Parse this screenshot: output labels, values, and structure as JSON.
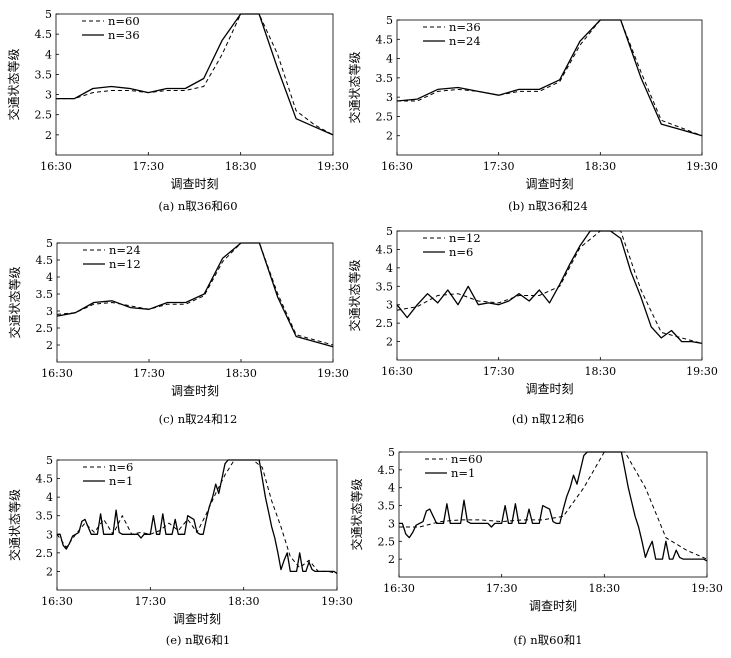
{
  "figure": {
    "panels": [
      {
        "caption": "(a) n取36和60",
        "xlabel": "调查时刻",
        "ylabel": "交通状态等级",
        "legend": [
          {
            "label": "n=60",
            "style": "dashed"
          },
          {
            "label": "n=36",
            "style": "solid"
          }
        ]
      },
      {
        "caption": "(b) n取36和24",
        "xlabel": "调查时刻",
        "ylabel": "交通状态等级",
        "legend": [
          {
            "label": "n=36",
            "style": "dashed"
          },
          {
            "label": "n=24",
            "style": "solid"
          }
        ]
      },
      {
        "caption": "(c) n取24和12",
        "xlabel": "调查时刻",
        "ylabel": "交通状态等级",
        "legend": [
          {
            "label": "n=24",
            "style": "dashed"
          },
          {
            "label": "n=12",
            "style": "solid"
          }
        ]
      },
      {
        "caption": "(d) n取12和6",
        "xlabel": "调查时刻",
        "ylabel": "交通状态等级",
        "legend": [
          {
            "label": "n=12",
            "style": "dashed"
          },
          {
            "label": "n=6",
            "style": "solid"
          }
        ]
      },
      {
        "caption": "(e) n取6和1",
        "xlabel": "调查时刻",
        "ylabel": "交通状态等级",
        "legend": [
          {
            "label": "n=6",
            "style": "dashed"
          },
          {
            "label": "n=1",
            "style": "solid"
          }
        ]
      },
      {
        "caption": "(f) n取60和1",
        "xlabel": "调查时刻",
        "ylabel": "交通状态等级",
        "legend": [
          {
            "label": "n=60",
            "style": "dashed"
          },
          {
            "label": "n=1",
            "style": "solid"
          }
        ]
      }
    ]
  },
  "chart_data": {
    "type": "line",
    "x_unit": "minutes after 16:30",
    "x_tick_labels": [
      "16:30",
      "17:30",
      "18:30",
      "19:30"
    ],
    "x_ticks": [
      0,
      60,
      120,
      180
    ],
    "xlim": [
      0,
      180
    ],
    "ylim": [
      1.5,
      5
    ],
    "y_ticks": [
      2,
      2.5,
      3,
      3.5,
      4,
      4.5,
      5
    ],
    "y_tick_labels": [
      "2",
      "2.5",
      "3",
      "3.5",
      "4",
      "4.5",
      "5"
    ],
    "series_by_n": {
      "1": {
        "x": [
          0,
          2,
          4,
          6,
          8,
          10,
          12,
          14,
          16,
          18,
          20,
          22,
          24,
          26,
          28,
          30,
          32,
          34,
          36,
          38,
          40,
          42,
          44,
          46,
          48,
          50,
          52,
          54,
          56,
          58,
          60,
          62,
          64,
          66,
          68,
          70,
          72,
          74,
          76,
          78,
          80,
          82,
          84,
          86,
          88,
          90,
          92,
          94,
          96,
          98,
          100,
          102,
          104,
          106,
          108,
          110,
          112,
          114,
          116,
          118,
          120,
          122,
          124,
          126,
          128,
          130,
          132,
          134,
          136,
          138,
          140,
          142,
          144,
          146,
          148,
          150,
          152,
          154,
          156,
          158,
          160,
          162,
          164,
          166,
          168,
          170,
          172,
          174,
          176,
          178,
          180
        ],
        "y": [
          3.0,
          3.0,
          2.7,
          2.6,
          2.75,
          2.95,
          3.0,
          3.05,
          3.35,
          3.4,
          3.2,
          3.0,
          3.0,
          3.0,
          3.55,
          3.0,
          3.0,
          3.0,
          3.0,
          3.65,
          3.05,
          3.0,
          3.0,
          3.0,
          3.0,
          3.0,
          3.0,
          2.9,
          3.0,
          3.0,
          3.0,
          3.5,
          3.0,
          3.0,
          3.55,
          3.0,
          3.0,
          3.0,
          3.4,
          3.0,
          3.0,
          3.0,
          3.5,
          3.45,
          3.4,
          3.05,
          3.0,
          3.0,
          3.4,
          3.75,
          4.0,
          4.35,
          4.1,
          4.5,
          4.9,
          5.0,
          5.0,
          5.0,
          5.0,
          5.0,
          5.0,
          5.0,
          5.0,
          5.0,
          5.0,
          5.0,
          4.5,
          4.0,
          3.6,
          3.2,
          2.9,
          2.5,
          2.05,
          2.3,
          2.5,
          2.0,
          2.0,
          2.0,
          2.5,
          2.0,
          2.0,
          2.25,
          2.05,
          2.0,
          2.0,
          2.0,
          2.0,
          2.0,
          2.0,
          2.0,
          1.95
        ]
      },
      "6": {
        "x": [
          0,
          6,
          12,
          18,
          24,
          30,
          36,
          42,
          48,
          54,
          60,
          66,
          72,
          78,
          84,
          90,
          96,
          102,
          108,
          114,
          120,
          126,
          132,
          138,
          144,
          150,
          156,
          162,
          168,
          174,
          180
        ],
        "y": [
          3.0,
          2.65,
          3.0,
          3.3,
          3.05,
          3.4,
          3.0,
          3.5,
          3.0,
          3.05,
          3.0,
          3.1,
          3.3,
          3.1,
          3.4,
          3.05,
          3.55,
          4.1,
          4.6,
          5.0,
          5.0,
          5.0,
          4.8,
          3.9,
          3.2,
          2.4,
          2.1,
          2.3,
          2.0,
          2.0,
          1.95
        ]
      },
      "12": {
        "x": [
          0,
          12,
          24,
          36,
          48,
          60,
          72,
          84,
          96,
          108,
          120,
          132,
          144,
          156,
          168,
          180
        ],
        "y": [
          2.85,
          2.95,
          3.25,
          3.3,
          3.1,
          3.05,
          3.25,
          3.25,
          3.5,
          4.55,
          5.0,
          5.0,
          3.4,
          2.25,
          2.1,
          1.95
        ]
      },
      "24": {
        "x": [
          0,
          12,
          24,
          36,
          48,
          60,
          72,
          84,
          96,
          108,
          120,
          132,
          144,
          156,
          168,
          180
        ],
        "y": [
          2.9,
          2.95,
          3.2,
          3.25,
          3.15,
          3.05,
          3.2,
          3.2,
          3.45,
          4.45,
          5.0,
          5.0,
          3.5,
          2.3,
          2.15,
          2.0
        ]
      },
      "36": {
        "x": [
          0,
          12,
          24,
          36,
          48,
          60,
          72,
          84,
          96,
          108,
          120,
          132,
          144,
          156,
          168,
          180
        ],
        "y": [
          2.9,
          2.9,
          3.15,
          3.2,
          3.15,
          3.05,
          3.15,
          3.15,
          3.4,
          4.35,
          5.0,
          5.0,
          3.65,
          2.4,
          2.2,
          2.0
        ]
      },
      "60": {
        "x": [
          0,
          12,
          24,
          36,
          48,
          60,
          72,
          84,
          96,
          108,
          120,
          132,
          144,
          156,
          168,
          180
        ],
        "y": [
          2.9,
          2.9,
          3.05,
          3.1,
          3.1,
          3.05,
          3.1,
          3.1,
          3.2,
          4.0,
          5.0,
          5.0,
          4.0,
          2.6,
          2.25,
          2.0
        ]
      }
    },
    "panels": [
      {
        "dashed_n": "60",
        "solid_n": "36"
      },
      {
        "dashed_n": "36",
        "solid_n": "24"
      },
      {
        "dashed_n": "24",
        "solid_n": "12"
      },
      {
        "dashed_n": "12",
        "solid_n": "6"
      },
      {
        "dashed_n": "6",
        "solid_n": "1"
      },
      {
        "dashed_n": "60",
        "solid_n": "1"
      }
    ],
    "grid": false,
    "legend_position": "top-left"
  }
}
